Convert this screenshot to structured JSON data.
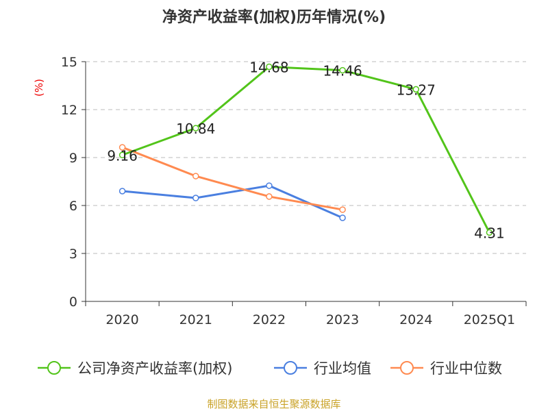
{
  "chart_data": {
    "type": "line",
    "title": "净资产收益率(加权)历年情况(%)",
    "ylabel": "(%)",
    "categories": [
      "2020",
      "2021",
      "2022",
      "2023",
      "2024",
      "2025Q1"
    ],
    "ylim": [
      0,
      15
    ],
    "yticks": [
      0,
      3,
      6,
      9,
      12,
      15
    ],
    "grid": true,
    "legend_position": "bottom",
    "series": [
      {
        "name": "公司净资产收益率(加权)",
        "color": "#52c41a",
        "values": [
          9.16,
          10.84,
          14.68,
          14.46,
          13.27,
          4.31
        ],
        "labels": [
          "9.16",
          "10.84",
          "14.68",
          "14.46",
          "13.27",
          "4.31"
        ]
      },
      {
        "name": "行业均值",
        "color": "#4a7fe0",
        "values": [
          6.9,
          6.47,
          7.24,
          5.23,
          null,
          null
        ]
      },
      {
        "name": "行业中位数",
        "color": "#ff8a50",
        "values": [
          9.64,
          7.84,
          6.56,
          5.74,
          null,
          null
        ]
      }
    ],
    "source": "制图数据来自恒生聚源数据库"
  }
}
